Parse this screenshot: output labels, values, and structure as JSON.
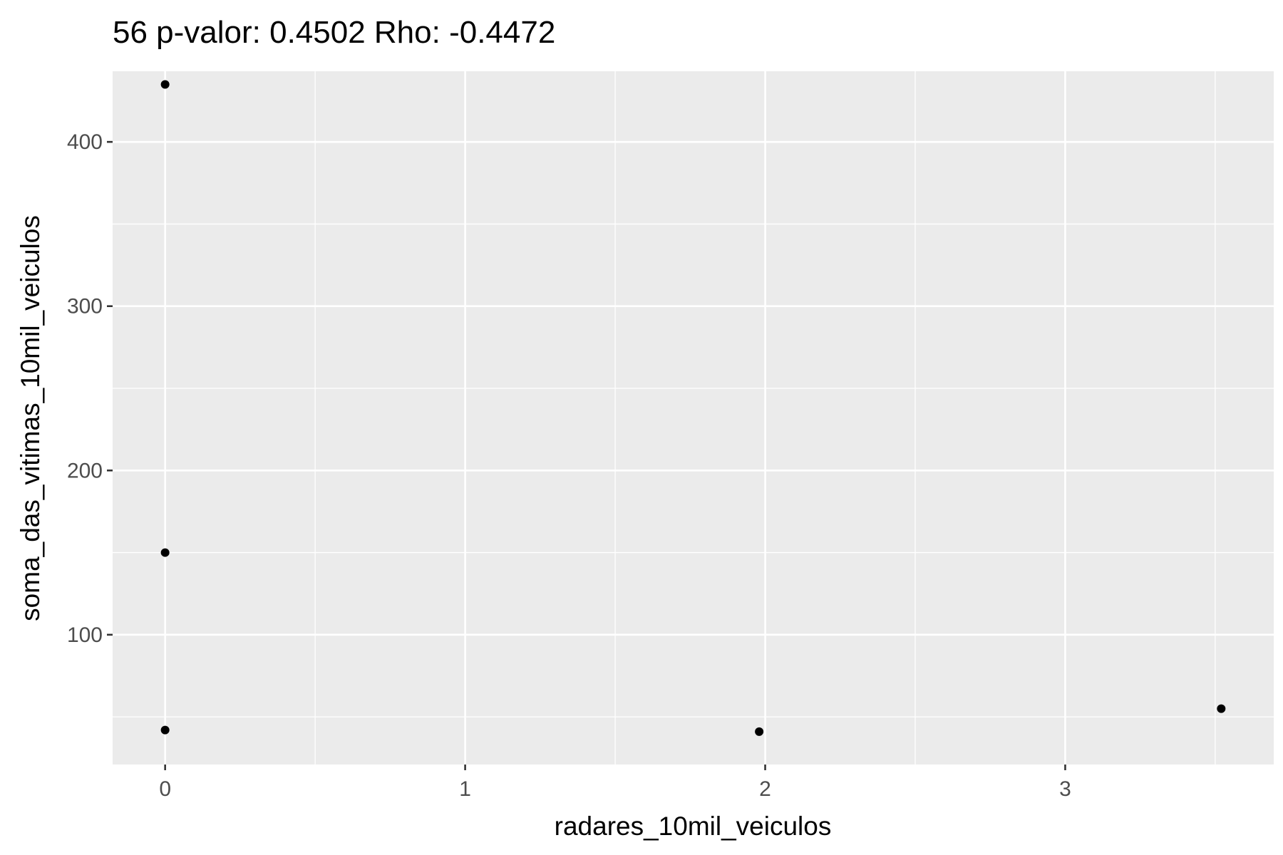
{
  "chart_data": {
    "type": "scatter",
    "title": "56 p-valor: 0.4502 Rho: -0.4472",
    "xlabel": "radares_10mil_veiculos",
    "ylabel": "soma_das_vitimas_10mil_veiculos",
    "xlim": [
      -0.175,
      3.695
    ],
    "ylim": [
      21,
      443
    ],
    "x_ticks": [
      0,
      1,
      2,
      3
    ],
    "y_ticks": [
      100,
      200,
      300,
      400
    ],
    "x_tick_labels": [
      "0",
      "1",
      "2",
      "3"
    ],
    "y_tick_labels": [
      "100",
      "200",
      "300",
      "400"
    ],
    "grid": true,
    "legend": "none",
    "point_color": "#000000",
    "panel_color": "#EBEBEB",
    "points": [
      {
        "x": 0,
        "y": 435
      },
      {
        "x": 0,
        "y": 150
      },
      {
        "x": 0,
        "y": 42
      },
      {
        "x": 1.98,
        "y": 41
      },
      {
        "x": 3.52,
        "y": 55
      }
    ]
  }
}
